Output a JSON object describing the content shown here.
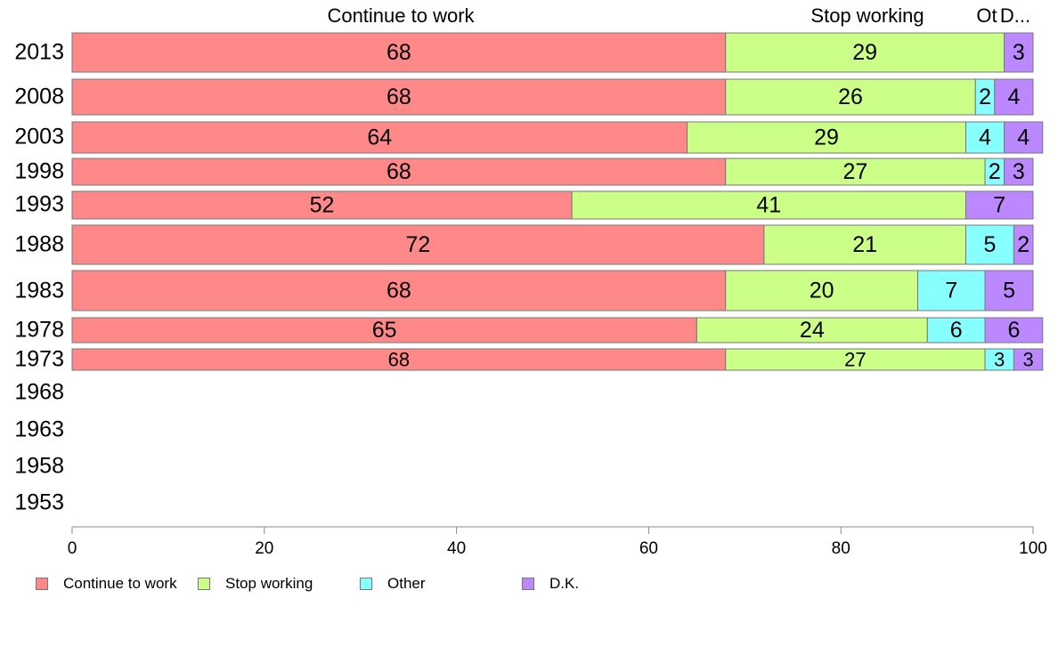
{
  "chart_data": {
    "type": "bar",
    "orientation": "horizontal",
    "stacked": true,
    "title": "",
    "xlabel": "",
    "ylabel": "",
    "xlim": [
      0,
      100
    ],
    "x_ticks": [
      0,
      20,
      40,
      60,
      80,
      100
    ],
    "grid": false,
    "legend_position": "bottom-left",
    "categories": [
      "2013",
      "2008",
      "2003",
      "1998",
      "1993",
      "1988",
      "1983",
      "1978",
      "1973",
      "1968",
      "1963",
      "1958",
      "1953"
    ],
    "series": [
      {
        "name": "Continue to work",
        "color": "#ff8888",
        "values": [
          68,
          68,
          64,
          68,
          52,
          72,
          68,
          65,
          68,
          null,
          null,
          null,
          null
        ]
      },
      {
        "name": "Stop working",
        "color": "#ccff88",
        "values": [
          29,
          26,
          29,
          27,
          41,
          21,
          20,
          24,
          27,
          null,
          null,
          null,
          null
        ]
      },
      {
        "name": "Other",
        "color": "#88ffff",
        "values": [
          0,
          2,
          4,
          2,
          0,
          5,
          7,
          6,
          3,
          null,
          null,
          null,
          null
        ]
      },
      {
        "name": "D.K.",
        "color": "#bb88ff",
        "values": [
          3,
          4,
          4,
          3,
          7,
          2,
          5,
          6,
          3,
          null,
          null,
          null,
          null
        ]
      }
    ],
    "top_labels": [
      "Continue to work",
      "Stop working",
      "Ot",
      "D..."
    ]
  }
}
